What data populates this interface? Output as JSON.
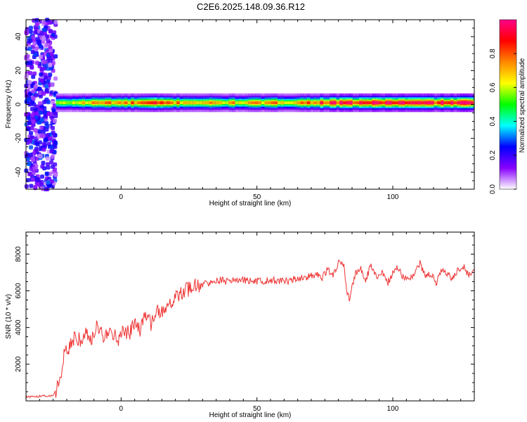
{
  "title": "C2E6.2025.148.09.36.R12",
  "chart_data": [
    {
      "type": "heatmap",
      "xlabel": "Height of straight line (km)",
      "ylabel": "Frequency (Hz)",
      "xlim": [
        -35,
        130
      ],
      "ylim": [
        -50,
        50
      ],
      "xticks": [
        0,
        50,
        100
      ],
      "yticks": [
        -40,
        -20,
        0,
        20,
        40
      ],
      "grid": false,
      "colorbar": {
        "label": "Normalized spectral amplitude",
        "range": [
          0,
          1
        ],
        "ticks": [
          0.0,
          0.2,
          0.4,
          0.6,
          0.8
        ],
        "tick_labels": [
          "0.0",
          "0.2",
          "0.4",
          "0.6",
          "0.8"
        ],
        "colors": [
          "#ffffff",
          "#8800ff",
          "#0000ff",
          "#00ffff",
          "#00ff00",
          "#ffff00",
          "#ff8800",
          "#ff0000",
          "#ff0088"
        ]
      },
      "noise_region_x": [
        -35,
        -24
      ],
      "signal_center_hz": 1,
      "signal_peaks": [
        {
          "x": -22,
          "amp": 0.55
        },
        {
          "x": -18,
          "amp": 0.62
        },
        {
          "x": -12,
          "amp": 0.7
        },
        {
          "x": -5,
          "amp": 0.78
        },
        {
          "x": 0,
          "amp": 0.72
        },
        {
          "x": 8,
          "amp": 0.8
        },
        {
          "x": 12,
          "amp": 0.82
        },
        {
          "x": 20,
          "amp": 0.75
        },
        {
          "x": 35,
          "amp": 0.68
        },
        {
          "x": 50,
          "amp": 0.7
        },
        {
          "x": 65,
          "amp": 0.74
        },
        {
          "x": 72,
          "amp": 0.85
        },
        {
          "x": 80,
          "amp": 0.88
        },
        {
          "x": 90,
          "amp": 0.92
        },
        {
          "x": 97,
          "amp": 0.95
        },
        {
          "x": 110,
          "amp": 0.9
        },
        {
          "x": 120,
          "amp": 0.93
        },
        {
          "x": 130,
          "amp": 0.95
        }
      ]
    },
    {
      "type": "line",
      "xlabel": "Height of straight line (km)",
      "ylabel": "SNR (10 * v/v)",
      "xlim": [
        -35,
        130
      ],
      "ylim": [
        0,
        9200
      ],
      "xticks": [
        0,
        50,
        100
      ],
      "yticks": [
        2000,
        4000,
        6000,
        8000
      ],
      "grid": false,
      "color": "#ee3333",
      "series": [
        {
          "x": [
            -35,
            -30,
            -25,
            -23,
            -21,
            -19,
            -17,
            -15,
            -13,
            -11,
            -9,
            -7,
            -5,
            -3,
            -1,
            1,
            3,
            5,
            7,
            9,
            11,
            13,
            15,
            17,
            19,
            21,
            23,
            25,
            27,
            29,
            31,
            33,
            35,
            40,
            45,
            50,
            55,
            60,
            65,
            70,
            72,
            74,
            76,
            78,
            80,
            82,
            83,
            84,
            86,
            88,
            90,
            92,
            94,
            96,
            98,
            100,
            102,
            104,
            106,
            108,
            110,
            112,
            114,
            116,
            118,
            120,
            122,
            124,
            126,
            128,
            130
          ],
          "y": [
            200,
            250,
            300,
            800,
            2500,
            3000,
            3500,
            3300,
            3800,
            3400,
            4000,
            3600,
            3500,
            3700,
            3300,
            3800,
            3700,
            4200,
            3900,
            4600,
            4200,
            5000,
            4800,
            5200,
            5400,
            5800,
            6000,
            6100,
            6300,
            6200,
            6500,
            6400,
            6600,
            6500,
            6600,
            6500,
            6600,
            6500,
            6700,
            6800,
            6900,
            6700,
            7100,
            6900,
            7500,
            7300,
            6100,
            5500,
            6800,
            7300,
            6600,
            7400,
            6700,
            7100,
            6400,
            7000,
            7300,
            6600,
            6700,
            6900,
            7500,
            6700,
            7000,
            6400,
            7100,
            7000,
            6600,
            7200,
            7300,
            6900,
            7100
          ]
        }
      ]
    }
  ],
  "colors": {
    "line": "#ee3333",
    "axis": "#000000"
  }
}
